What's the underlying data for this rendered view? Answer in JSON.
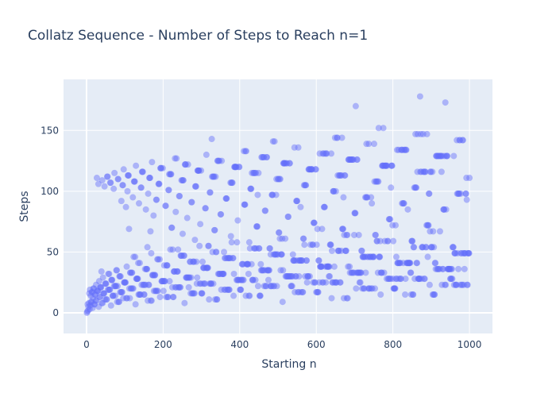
{
  "chart_data": {
    "type": "scatter",
    "title": "Collatz Sequence - Number of Steps to Reach n=1",
    "xlabel": "Starting n",
    "ylabel": "Steps",
    "xlim": [
      -60,
      1060
    ],
    "ylim": [
      -17,
      192
    ],
    "x_ticks": [
      0,
      200,
      400,
      600,
      800,
      1000
    ],
    "y_ticks": [
      0,
      50,
      100,
      150
    ],
    "grid": true,
    "legend": "none",
    "marker_color": "#636efa",
    "background_color": "#e5ecf6",
    "series": [
      {
        "x": [],
        "y": []
      }
    ]
  }
}
